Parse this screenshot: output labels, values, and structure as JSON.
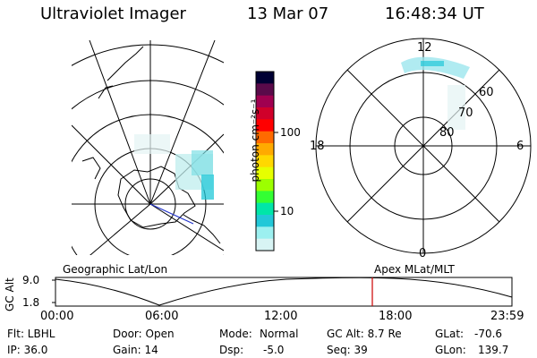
{
  "header": {
    "instrument": "Ultraviolet Imager",
    "date": "13 Mar 07",
    "time": "16:48:34 UT"
  },
  "colorbar": {
    "unit_label": "photon cm⁻²s⁻¹",
    "ticks": [
      "100",
      "10"
    ],
    "scale": "log",
    "colors": [
      "#000033",
      "#5a0a4a",
      "#a00050",
      "#d0002a",
      "#ff0000",
      "#ff6a00",
      "#ffaa00",
      "#ffd800",
      "#e6ff00",
      "#9cff00",
      "#33ff33",
      "#00e6a8",
      "#22c8d8",
      "#9cf0f0",
      "#d8f4f4"
    ]
  },
  "left_map": {
    "label": "Geographic Lat/Lon"
  },
  "right_map": {
    "label": "Apex MLat/MLT",
    "mlt_labels": [
      "12",
      "18",
      "6",
      "0"
    ],
    "mlat_labels": [
      "60",
      "70",
      "80"
    ]
  },
  "altitude_plot": {
    "ylabel": "GC Alt",
    "yticks": [
      "9.0",
      "1.8"
    ],
    "xticks": [
      "00:00",
      "06:00",
      "12:00",
      "18:00",
      "23:59"
    ],
    "marker_time": "16:48",
    "marker_color": "#cc0000"
  },
  "info": {
    "col1": [
      "Flt: LBHL",
      "IP: 36.0"
    ],
    "col2": [
      "Door: Open",
      "Gain: 14"
    ],
    "col3_labels": [
      "Mode:",
      "Dsp:"
    ],
    "col3_values": [
      "Normal",
      "-5.0"
    ],
    "col4": [
      "GC Alt: 8.7 Re",
      "Seq: 39"
    ],
    "col5_labels": [
      "GLat:",
      "GLon:"
    ],
    "col5_values": [
      "-70.6",
      "139.7"
    ]
  }
}
